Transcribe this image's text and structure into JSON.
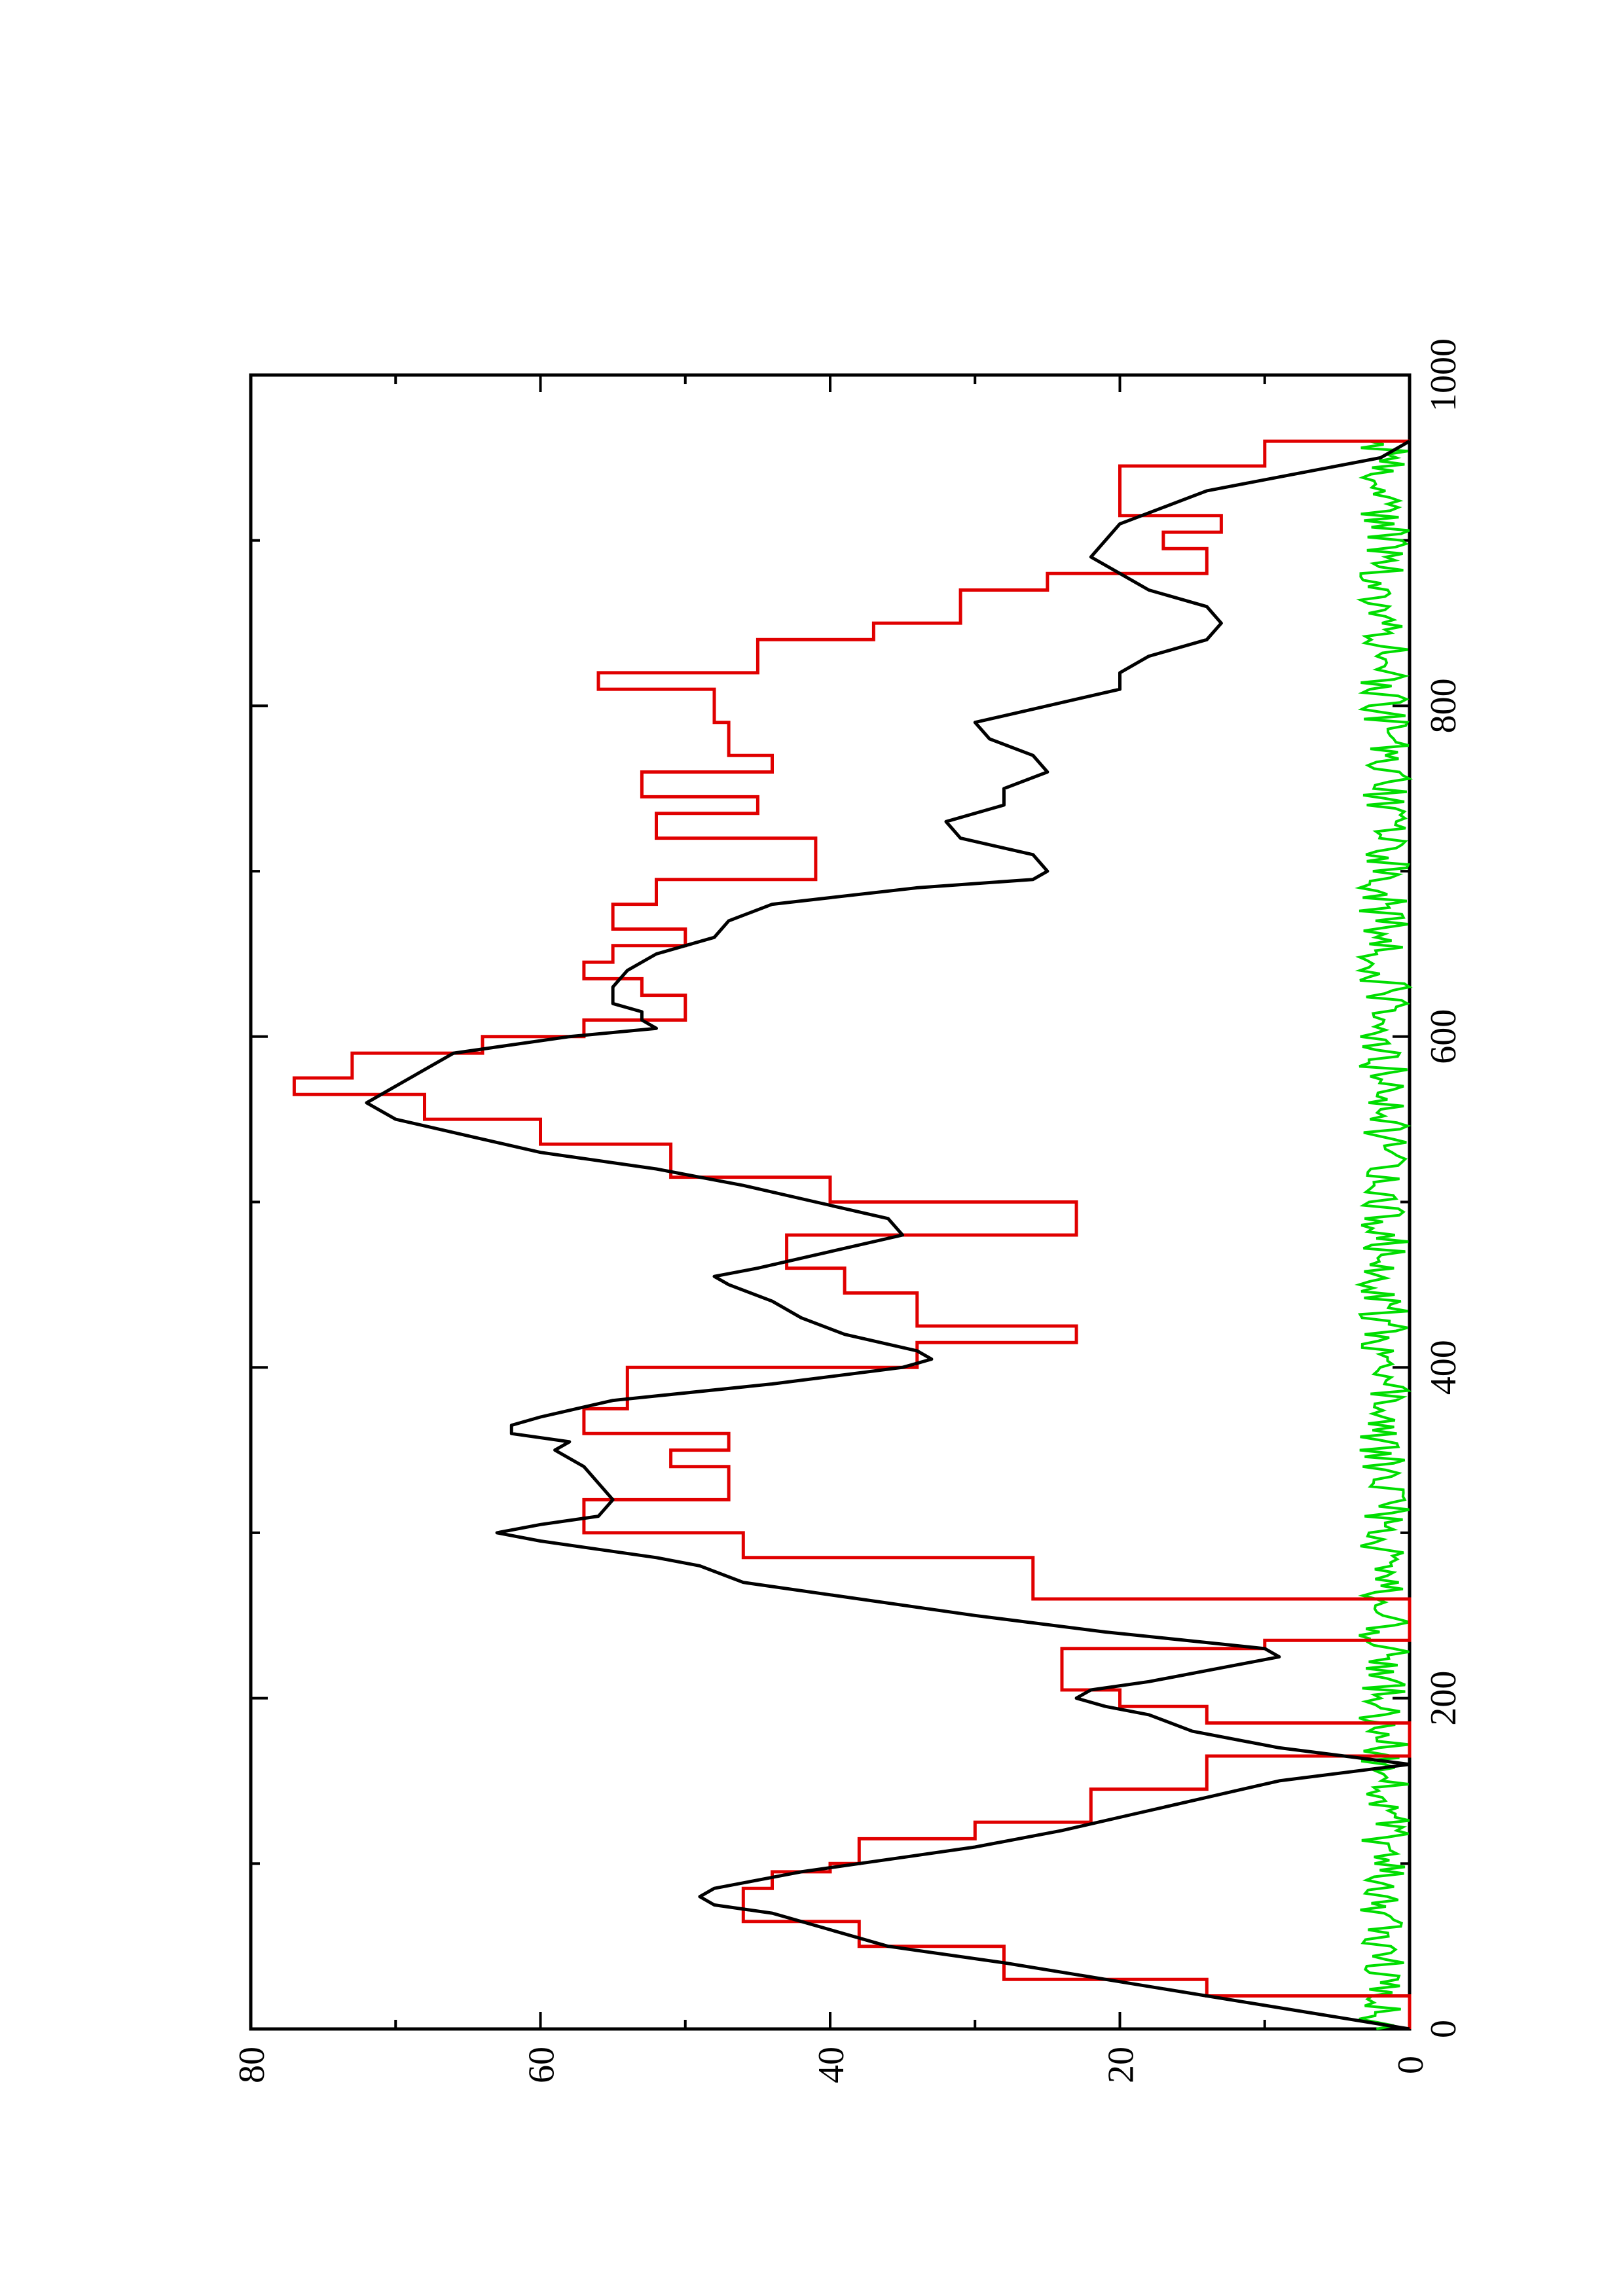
{
  "chart_data": {
    "type": "line",
    "title": "",
    "xlabel": "",
    "ylabel": "",
    "orientation": "rotated 90 degrees counter-clockwise (x axis runs vertically on the page, y axis horizontally)",
    "xlim": [
      0,
      1000
    ],
    "ylim": [
      0,
      80
    ],
    "x_ticks": [
      0,
      200,
      400,
      600,
      800,
      1000
    ],
    "x_tick_labels": [
      "0",
      "200",
      "400",
      "600",
      "800",
      "1000"
    ],
    "y_ticks": [
      0,
      20,
      40,
      60,
      80
    ],
    "y_tick_labels": [
      "0",
      "20",
      "40",
      "60",
      "80"
    ],
    "grid": false,
    "legend": "none",
    "colors": {
      "black_series": "#000000",
      "red_series": "#e00000",
      "green_series": "#00dd00"
    },
    "series": [
      {
        "color": "#e00000",
        "style": "step",
        "x": [
          0,
          20,
          30,
          50,
          65,
          75,
          85,
          95,
          100,
          115,
          125,
          145,
          165,
          185,
          195,
          205,
          230,
          235,
          260,
          285,
          300,
          305,
          320,
          330,
          340,
          350,
          360,
          375,
          400,
          415,
          425,
          445,
          460,
          480,
          500,
          515,
          535,
          550,
          565,
          575,
          590,
          600,
          610,
          625,
          635,
          645,
          655,
          665,
          680,
          695,
          720,
          735,
          745,
          760,
          770,
          790,
          810,
          820,
          840,
          850,
          870,
          880,
          895,
          905,
          915,
          930,
          945,
          960
        ],
        "y": [
          0,
          14,
          28,
          38,
          46,
          46,
          44,
          40,
          38,
          30,
          22,
          14,
          0,
          14,
          20,
          24,
          10,
          0,
          26,
          46,
          57,
          57,
          47,
          47,
          51,
          47,
          57,
          54,
          34,
          23,
          34,
          39,
          43,
          23,
          40,
          51,
          60,
          68,
          77,
          73,
          64,
          57,
          50,
          53,
          57,
          55,
          50,
          55,
          52,
          41,
          52,
          45,
          53,
          44,
          47,
          48,
          56,
          45,
          37,
          31,
          25,
          14,
          17,
          13,
          20,
          20,
          10,
          0
        ]
      },
      {
        "color": "#000000",
        "style": "line",
        "x": [
          0,
          20,
          30,
          40,
          50,
          60,
          70,
          75,
          80,
          85,
          90,
          95,
          100,
          105,
          110,
          115,
          120,
          130,
          140,
          150,
          160,
          170,
          180,
          190,
          195,
          200,
          205,
          210,
          220,
          225,
          230,
          240,
          250,
          260,
          270,
          280,
          285,
          290,
          295,
          300,
          305,
          310,
          320,
          330,
          340,
          350,
          355,
          360,
          365,
          370,
          380,
          390,
          400,
          405,
          410,
          420,
          430,
          440,
          450,
          455,
          460,
          470,
          480,
          490,
          500,
          510,
          520,
          530,
          540,
          550,
          560,
          570,
          580,
          590,
          600,
          605,
          610,
          615,
          620,
          630,
          640,
          650,
          660,
          670,
          680,
          690,
          695,
          700,
          710,
          720,
          730,
          740,
          750,
          760,
          770,
          780,
          790,
          800,
          810,
          820,
          830,
          840,
          850,
          860,
          870,
          880,
          890,
          900,
          910,
          920,
          930,
          940,
          950,
          960
        ],
        "y": [
          0,
          14,
          21,
          28,
          36,
          40,
          44,
          48,
          49,
          48,
          45,
          42,
          38,
          34,
          30,
          27,
          24,
          19,
          14,
          9,
          0,
          9,
          15,
          18,
          21,
          23,
          22,
          18,
          12,
          9,
          10,
          21,
          30,
          38,
          46,
          49,
          52,
          56,
          60,
          63,
          60,
          56,
          55,
          56,
          57,
          59,
          58,
          62,
          62,
          60,
          55,
          44,
          35,
          33,
          34,
          39,
          42,
          44,
          47,
          48,
          45,
          40,
          35,
          36,
          41,
          46,
          52,
          60,
          65,
          70,
          72,
          70,
          68,
          66,
          58,
          52,
          53,
          53,
          55,
          55,
          54,
          52,
          48,
          47,
          44,
          34,
          26,
          25,
          26,
          31,
          32,
          28,
          28,
          25,
          26,
          29,
          30,
          25,
          20,
          20,
          18,
          14,
          13,
          14,
          18,
          20,
          22,
          21,
          20,
          17,
          14,
          8,
          2,
          0
        ]
      },
      {
        "color": "#00dd00",
        "style": "noisy-line",
        "x_range": [
          0,
          960
        ],
        "y_range": [
          0,
          3.5
        ],
        "description": "noise fluctuating between roughly 0 and 3.5 across x from 0 to 960"
      }
    ]
  }
}
